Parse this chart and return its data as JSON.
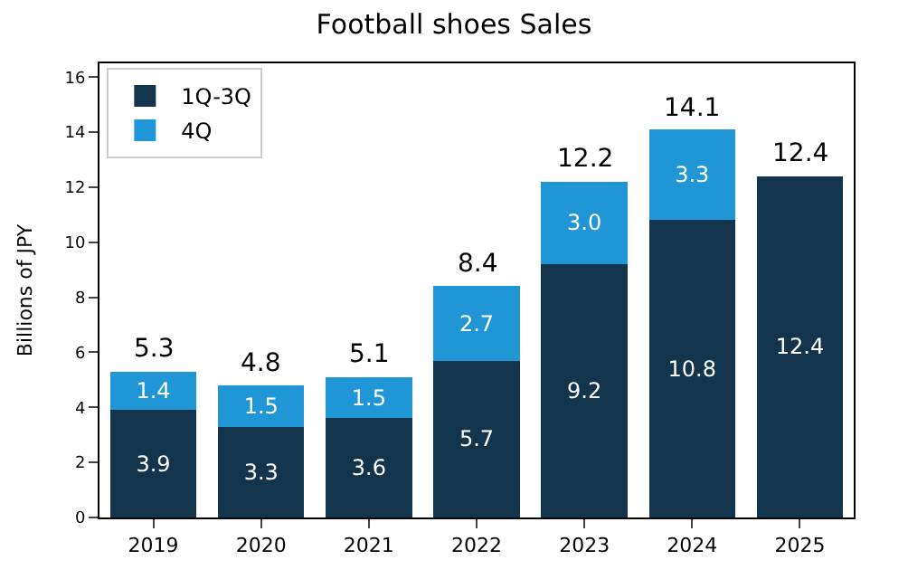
{
  "chart_data": {
    "type": "bar",
    "title": "Football shoes Sales",
    "ylabel": "Billions of JPY",
    "categories": [
      "2019",
      "2020",
      "2021",
      "2022",
      "2023",
      "2024",
      "2025"
    ],
    "stacked": true,
    "series": [
      {
        "name": "1Q-3Q",
        "color": "#12344d",
        "values": [
          3.9,
          3.3,
          3.6,
          5.7,
          9.2,
          10.8,
          12.4
        ],
        "value_labels": [
          "3.9",
          "3.3",
          "3.6",
          "5.7",
          "9.2",
          "10.8",
          "12.4"
        ]
      },
      {
        "name": "4Q",
        "color": "#2196d6",
        "values": [
          1.4,
          1.5,
          1.5,
          2.7,
          3.0,
          3.3,
          null
        ],
        "value_labels": [
          "1.4",
          "1.5",
          "1.5",
          "2.7",
          "3.0",
          "3.3",
          null
        ]
      }
    ],
    "totals": [
      "5.3",
      "4.8",
      "5.1",
      "8.4",
      "12.2",
      "14.1",
      "12.4"
    ],
    "ylim": [
      0,
      16.5
    ],
    "yticks": [
      0,
      2,
      4,
      6,
      8,
      10,
      12,
      14,
      16
    ],
    "legend": "top left"
  }
}
